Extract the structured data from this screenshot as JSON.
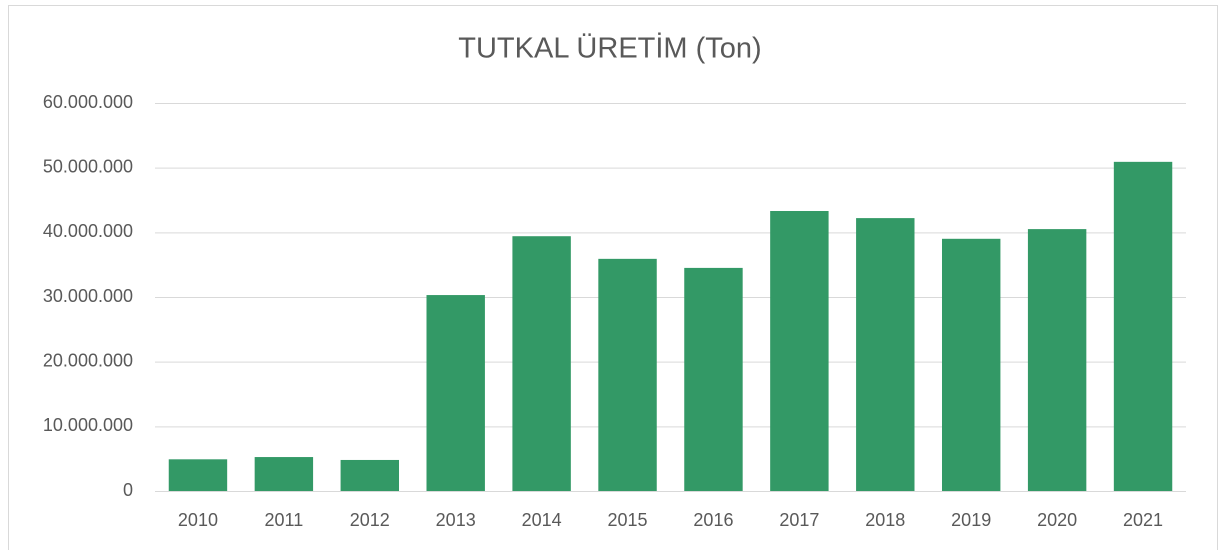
{
  "chart_data": {
    "type": "bar",
    "title": "TUTKAL ÜRETİM (Ton)",
    "categories": [
      "2010",
      "2011",
      "2012",
      "2013",
      "2014",
      "2015",
      "2016",
      "2017",
      "2018",
      "2019",
      "2020",
      "2021"
    ],
    "values": [
      4900000,
      5250000,
      4800000,
      30300000,
      39400000,
      35900000,
      34500000,
      43300000,
      42200000,
      39000000,
      40500000,
      50900000
    ],
    "color": "#339966",
    "ylim": [
      0,
      60000000
    ],
    "yticks": [
      0,
      {
        "value": 10000000,
        "label": "10.000.000"
      },
      {
        "value": 20000000,
        "label": "20.000.000"
      },
      {
        "value": 30000000,
        "label": "30.000.000"
      },
      {
        "value": 40000000,
        "label": "40.000.000"
      },
      {
        "value": 50000000,
        "label": "50.000.000"
      },
      {
        "value": 60000000,
        "label": "60.000.000"
      }
    ],
    "grid": true
  }
}
